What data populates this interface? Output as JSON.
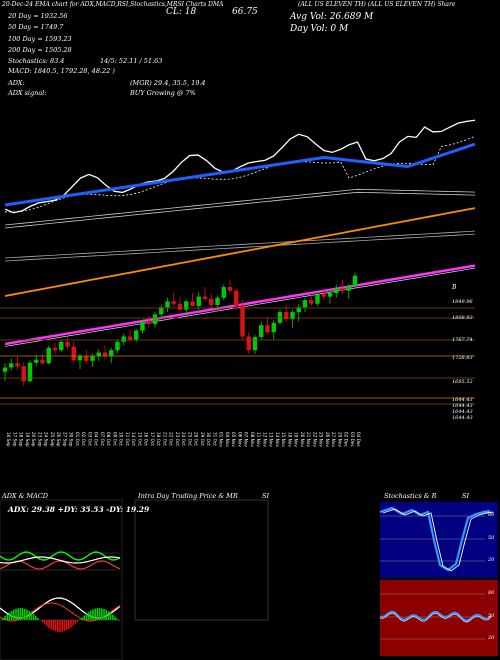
{
  "header": {
    "left": "20-Dec-24 EMA chart for ADX,MACD,RSI,Stochastics,MRSI Charts DMA",
    "cl_label": "CL: 18",
    "cl_value": "66.75",
    "avg_vol": "Avg Vol: 26.689 M",
    "day_vol": "Day Vol: 0   M",
    "ticker": "(ALL US ELEVEN TH) (ALL US ELEVEN TH) Share",
    "dma_20": "20   Day = 1932.56",
    "dma_50": "50   Day = 1749.7",
    "dma_100": "100  Day = 1593.23",
    "dma_200": "200  Day = 1505.28",
    "stochastics": "Stochastics: 83.4",
    "macd": "MACD: 1840.5, 1792.28, 48.22 )",
    "macd_tail": "14/5: 52.11 / 51.63",
    "adx": "ADX:",
    "adx_signal": "ADX signal:",
    "adx_values": "(MGR) 29.4, 35.5, 19.4",
    "buy_signal": "BUY Growing @ 7%"
  },
  "price_axis": {
    "labels": [
      "1849.96",
      "1808.93",
      "1767.74",
      "1728.63",
      "1685.52",
      "1644.43",
      "1644.43",
      "1644.43",
      "1644.43"
    ],
    "top_label": "B"
  },
  "x_axis_labels": [
    "16 Sep",
    "17 Sep",
    "18 Sep",
    "19 Sep",
    "20 Sep",
    "23 Sep",
    "24 Sep",
    "25 Sep",
    "26 Sep",
    "27 Sep",
    "30 Sep",
    "01 Oct",
    "02 Oct",
    "03 Oct",
    "04 Oct",
    "07 Oct",
    "08 Oct",
    "09 Oct",
    "10 Oct",
    "11 Oct",
    "14 Oct",
    "15 Oct",
    "16 Oct",
    "17 Oct",
    "18 Oct",
    "21 Oct",
    "22 Oct",
    "23 Oct",
    "24 Oct",
    "25 Oct",
    "28 Oct",
    "29 Oct",
    "30 Oct",
    "31 Oct",
    "01 Nov",
    "04 Nov",
    "05 Nov",
    "06 Nov",
    "07 Nov",
    "08 Nov",
    "11 Nov",
    "12 Nov",
    "13 Nov",
    "14 Nov",
    "15 Nov",
    "18 Nov",
    "19 Nov",
    "20 Nov",
    "21 Nov",
    "22 Nov",
    "25 Nov",
    "26 Nov",
    "27 Nov",
    "29 Nov",
    "02 Dec",
    "03 Dec",
    "04 Dec"
  ],
  "panels": {
    "adx_title": "ADX  & MACD",
    "adx_values": "ADX: 29.38  +DY: 35.53  -DY: 19.29",
    "intraday_title": "Intra  Day Trading Price  & MR",
    "intraday_right": "SI",
    "stoch_title": "Stochastics & R",
    "stoch_right": "SI",
    "stoch_levels": [
      "80",
      "50",
      "20"
    ],
    "rsi_levels": [
      "80",
      "50",
      "20"
    ]
  },
  "colors": {
    "up": "#00cc00",
    "down": "#dd1111",
    "ma20": "#1f5fff",
    "ma100": "#ff8c00",
    "ma200": "#ff33ff",
    "orange_line": "#cc7a00",
    "stoch_bg": "#000080",
    "rsi_bg": "#8b0000"
  },
  "chart_data": {
    "type": "candlestick",
    "candles": [
      [
        1686,
        1700,
        1670,
        1693
      ],
      [
        1693,
        1708,
        1688,
        1700
      ],
      [
        1700,
        1712,
        1690,
        1695
      ],
      [
        1695,
        1702,
        1662,
        1670
      ],
      [
        1670,
        1705,
        1668,
        1701
      ],
      [
        1701,
        1714,
        1695,
        1706
      ],
      [
        1706,
        1716,
        1698,
        1700
      ],
      [
        1700,
        1730,
        1698,
        1726
      ],
      [
        1726,
        1734,
        1716,
        1722
      ],
      [
        1722,
        1740,
        1718,
        1736
      ],
      [
        1736,
        1744,
        1722,
        1728
      ],
      [
        1728,
        1736,
        1700,
        1705
      ],
      [
        1705,
        1716,
        1690,
        1712
      ],
      [
        1712,
        1722,
        1700,
        1704
      ],
      [
        1704,
        1716,
        1694,
        1712
      ],
      [
        1712,
        1724,
        1704,
        1718
      ],
      [
        1718,
        1730,
        1708,
        1712
      ],
      [
        1712,
        1726,
        1700,
        1722
      ],
      [
        1722,
        1740,
        1716,
        1736
      ],
      [
        1736,
        1750,
        1730,
        1745
      ],
      [
        1745,
        1756,
        1736,
        1740
      ],
      [
        1740,
        1758,
        1735,
        1755
      ],
      [
        1755,
        1774,
        1750,
        1770
      ],
      [
        1770,
        1780,
        1760,
        1766
      ],
      [
        1766,
        1786,
        1760,
        1782
      ],
      [
        1782,
        1798,
        1776,
        1794
      ],
      [
        1794,
        1810,
        1786,
        1804
      ],
      [
        1804,
        1818,
        1795,
        1800
      ],
      [
        1800,
        1812,
        1786,
        1790
      ],
      [
        1790,
        1806,
        1780,
        1804
      ],
      [
        1804,
        1818,
        1798,
        1796
      ],
      [
        1796,
        1820,
        1790,
        1812
      ],
      [
        1812,
        1828,
        1804,
        1808
      ],
      [
        1808,
        1816,
        1792,
        1798
      ],
      [
        1798,
        1814,
        1790,
        1810
      ],
      [
        1810,
        1832,
        1806,
        1828
      ],
      [
        1828,
        1840,
        1816,
        1822
      ],
      [
        1822,
        1826,
        1790,
        1796
      ],
      [
        1796,
        1806,
        1740,
        1745
      ],
      [
        1745,
        1752,
        1716,
        1722
      ],
      [
        1722,
        1748,
        1716,
        1744
      ],
      [
        1744,
        1770,
        1740,
        1764
      ],
      [
        1764,
        1778,
        1748,
        1752
      ],
      [
        1752,
        1772,
        1740,
        1768
      ],
      [
        1768,
        1790,
        1765,
        1786
      ],
      [
        1786,
        1798,
        1770,
        1774
      ],
      [
        1774,
        1790,
        1760,
        1786
      ],
      [
        1786,
        1800,
        1770,
        1794
      ],
      [
        1794,
        1810,
        1786,
        1806
      ],
      [
        1806,
        1818,
        1796,
        1800
      ],
      [
        1800,
        1820,
        1796,
        1816
      ],
      [
        1816,
        1826,
        1806,
        1812
      ],
      [
        1812,
        1824,
        1800,
        1818
      ],
      [
        1818,
        1832,
        1810,
        1826
      ],
      [
        1826,
        1840,
        1816,
        1822
      ],
      [
        1822,
        1834,
        1808,
        1830
      ],
      [
        1830,
        1852,
        1826,
        1847
      ]
    ],
    "ylim": [
      1630,
      1860
    ]
  }
}
